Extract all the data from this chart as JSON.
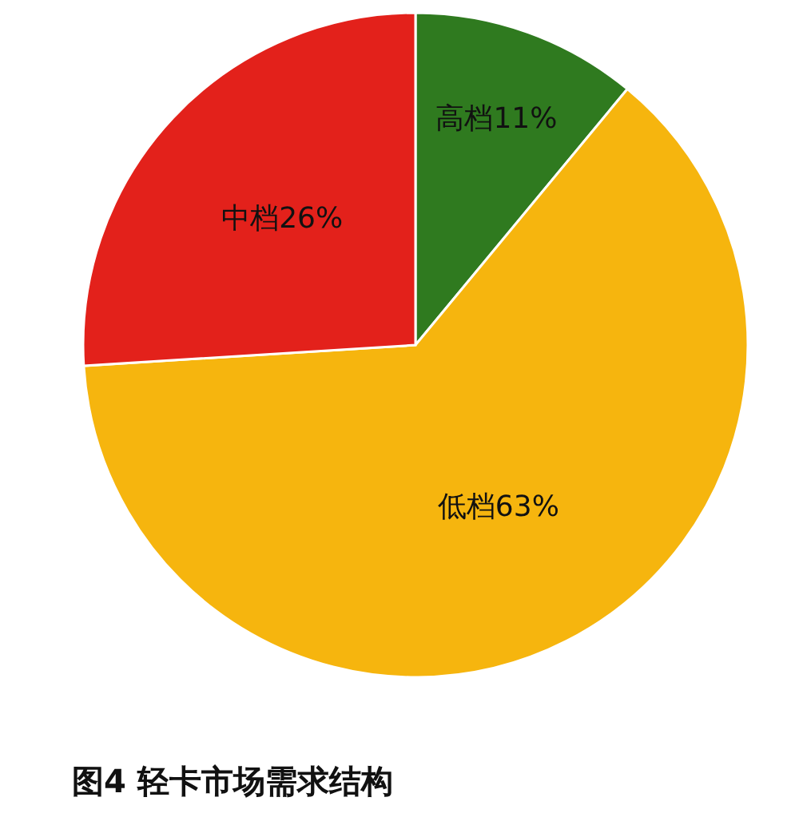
{
  "chart_data": {
    "type": "pie",
    "title": "图4 轻卡市场需求结构",
    "categories": [
      "高档",
      "低档",
      "中档"
    ],
    "values": [
      11,
      63,
      26
    ],
    "value_labels": [
      "11%",
      "63%",
      "26%"
    ],
    "colors": [
      "#2f7a1f",
      "#f6b50e",
      "#e3211b"
    ]
  }
}
